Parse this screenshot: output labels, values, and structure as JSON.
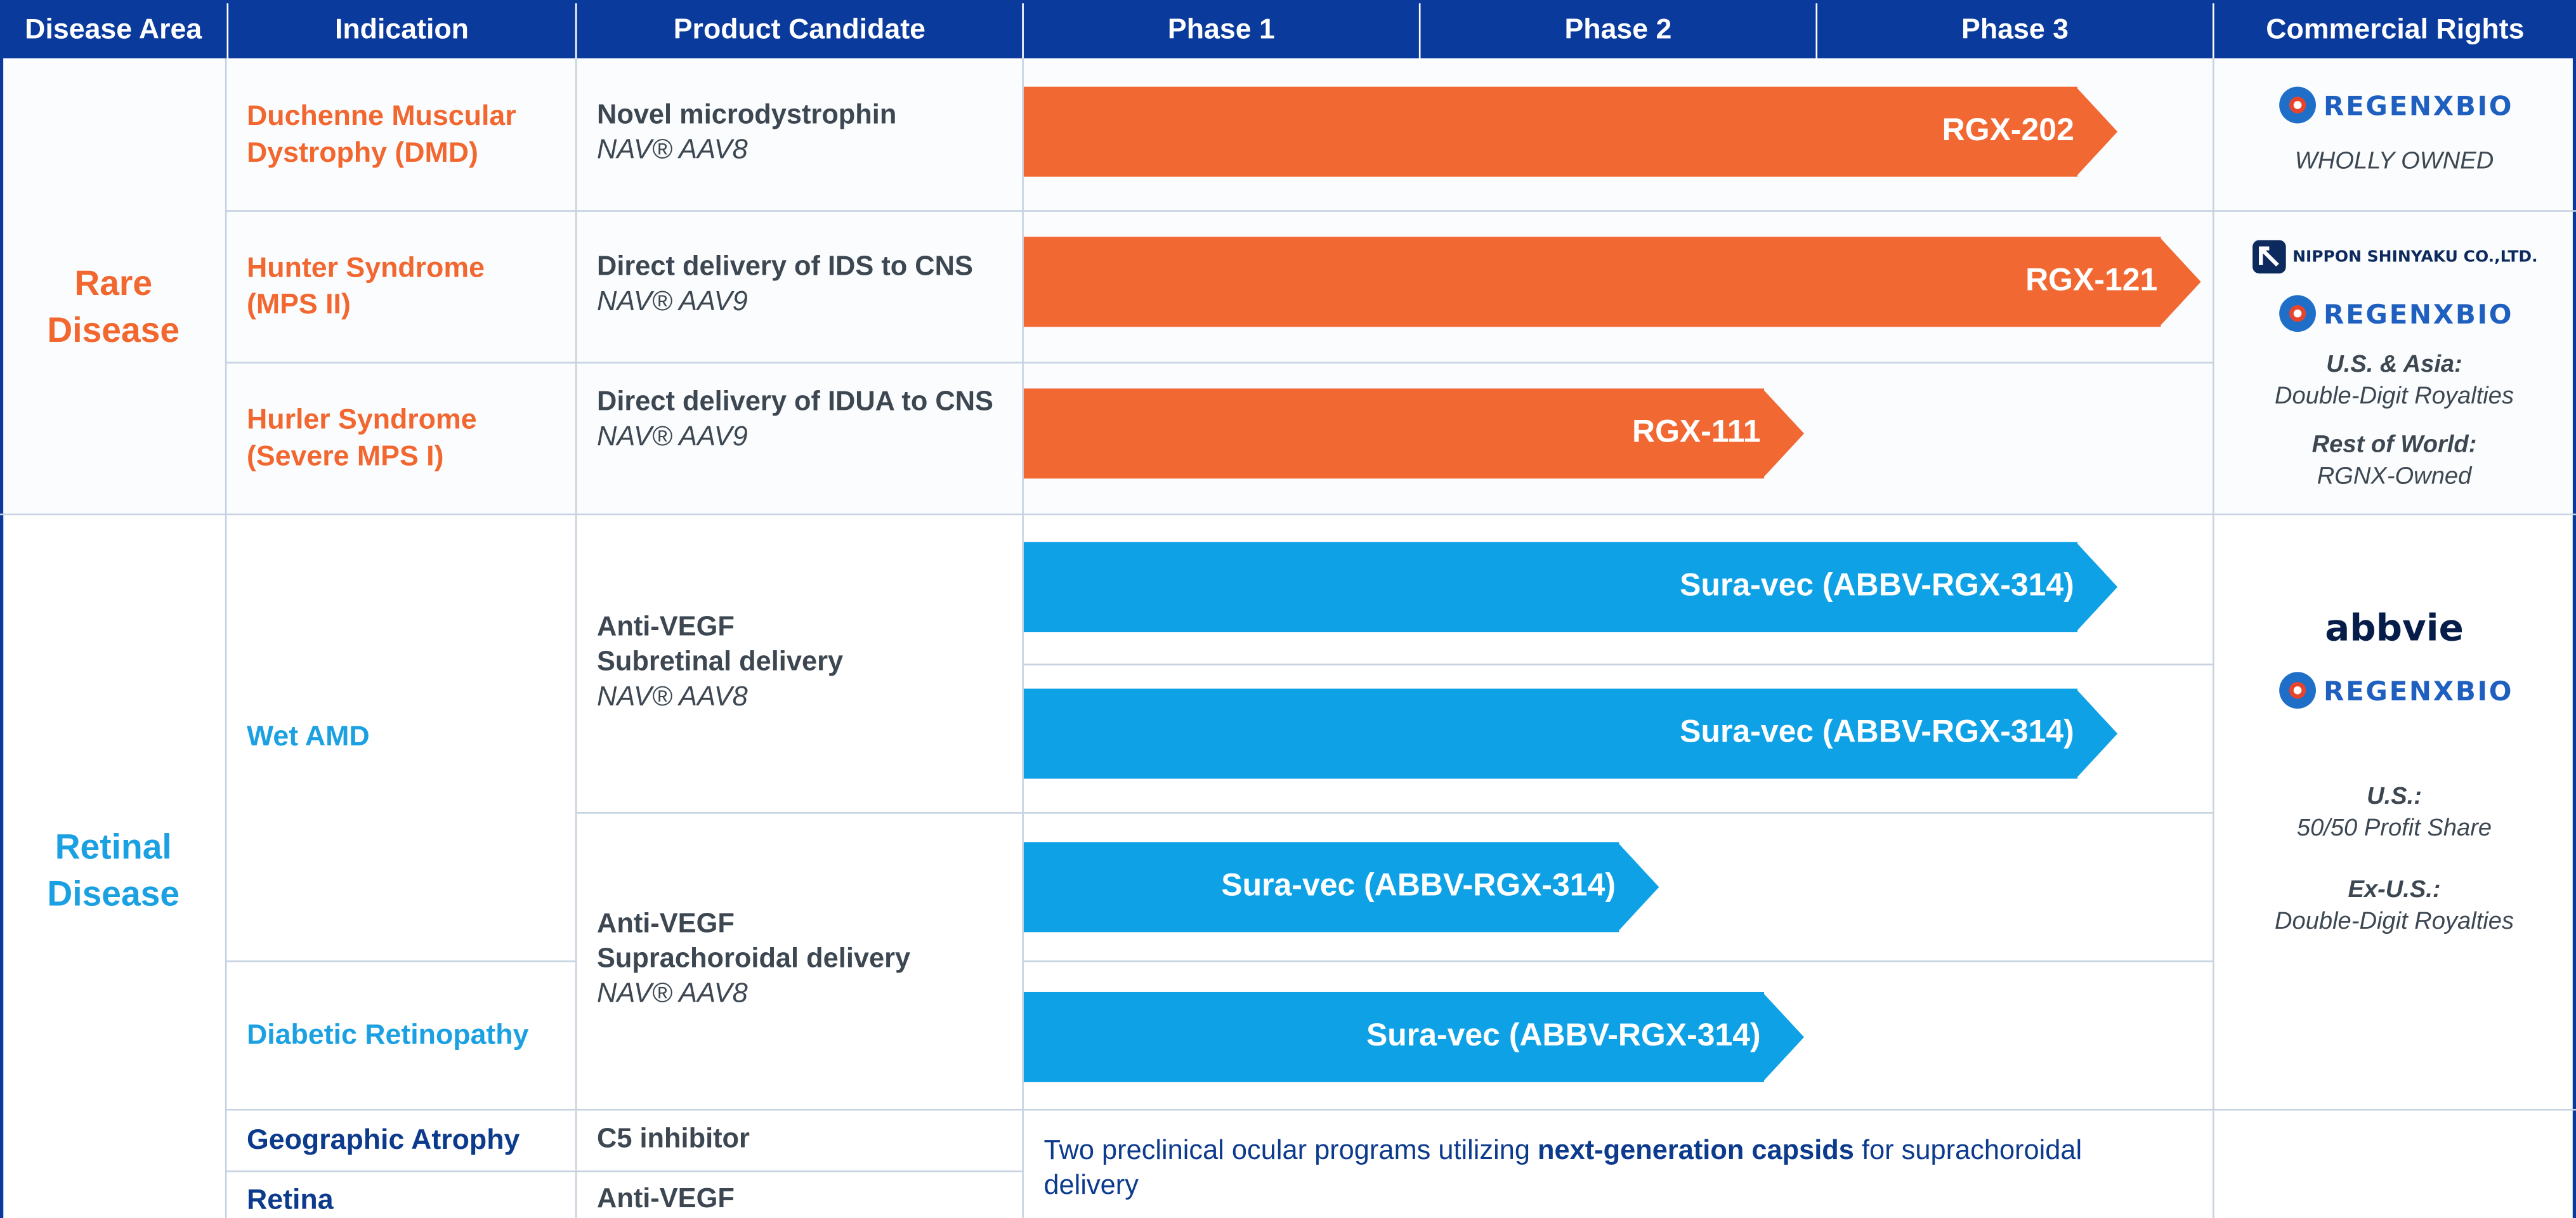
{
  "headers": {
    "disease_area": "Disease Area",
    "indication": "Indication",
    "product_candidate": "Product Candidate",
    "phase1": "Phase 1",
    "phase2": "Phase 2",
    "phase3": "Phase 3",
    "commercial_rights": "Commercial Rights"
  },
  "areas": {
    "rare": "Rare Disease",
    "retinal": "Retinal Disease"
  },
  "indications": {
    "dmd": [
      "Duchenne Muscular",
      "Dystrophy (DMD)"
    ],
    "hunter": [
      "Hunter Syndrome",
      "(MPS II)"
    ],
    "hurler": [
      "Hurler Syndrome",
      "(Severe MPS I)"
    ],
    "wet_amd": "Wet AMD",
    "dr": "Diabetic Retinopathy",
    "ga": "Geographic Atrophy",
    "retina": "Retina"
  },
  "products": {
    "dmd": {
      "name": "Novel microdystrophin",
      "vector": "NAV® AAV8"
    },
    "hunter": {
      "name": "Direct delivery of IDS to CNS",
      "vector": "NAV® AAV9"
    },
    "hurler": {
      "name": "Direct delivery of IDUA to CNS",
      "vector": "NAV® AAV9"
    },
    "subretinal": {
      "line1": "Anti-VEGF",
      "line2": "Subretinal delivery",
      "vector": "NAV® AAV8"
    },
    "suprachoroidal": {
      "line1": "Anti-VEGF",
      "line2": "Suprachoroidal delivery",
      "vector": "NAV® AAV8"
    },
    "ga": "C5 inhibitor",
    "retina": "Anti-VEGF"
  },
  "bars": {
    "rgx202": "RGX-202",
    "rgx121": "RGX-121",
    "rgx111": "RGX-111",
    "suravec1": "Sura-vec (ABBV-RGX-314)",
    "suravec2": "Sura-vec (ABBV-RGX-314)",
    "suravec3": "Sura-vec (ABBV-RGX-314)",
    "suravec4": "Sura-vec (ABBV-RGX-314)"
  },
  "preclinical": {
    "pre": "Two preclinical ocular programs utilizing ",
    "bold": "next-generation capsids",
    "post": " for suprachoroidal delivery"
  },
  "rights": {
    "regenxbio": "REGENXBIO",
    "nippon": "NIPPON SHINYAKU CO.,LTD.",
    "abbvie": "abbvie",
    "wholly_owned": "WHOLLY OWNED",
    "us_asia_label": "U.S. & Asia:",
    "us_asia_value": "Double-Digit Royalties",
    "row_label": "Rest of World:",
    "row_value": "RGNX-Owned",
    "us_label": "U.S.:",
    "us_value": "50/50 Profit Share",
    "exus_label": "Ex-U.S.:",
    "exus_value": "Double-Digit Royalties"
  },
  "colors": {
    "header": "#0a3a9c",
    "rare": "#f26730",
    "retinal": "#1ba1e2",
    "navy": "#0c3a8c"
  }
}
